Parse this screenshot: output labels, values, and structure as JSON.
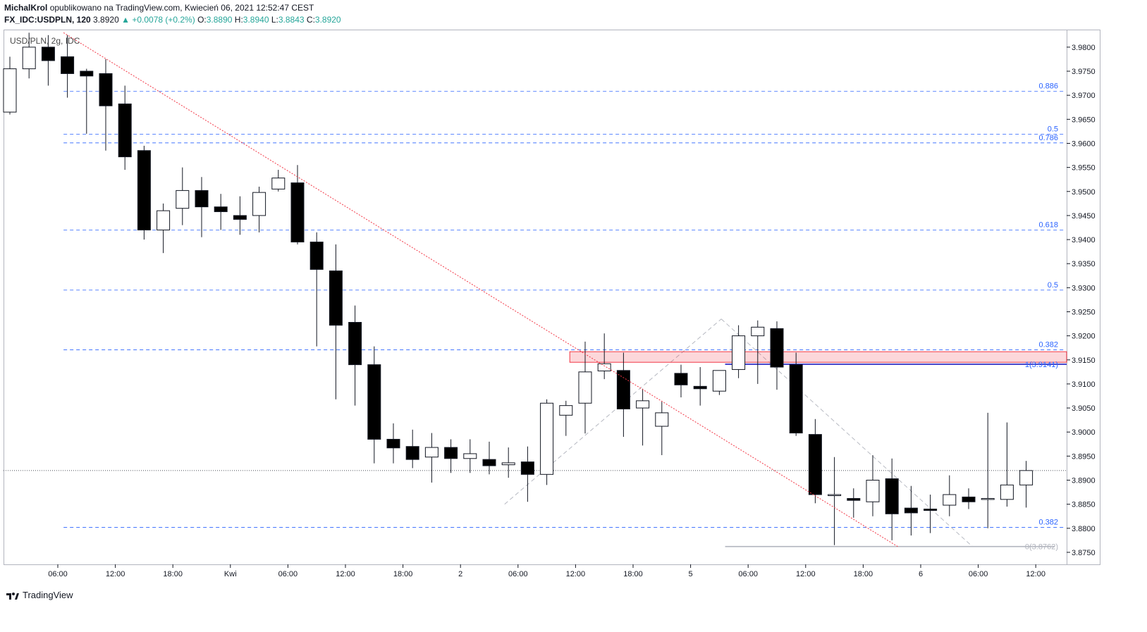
{
  "header": {
    "author": "MichalKrol",
    "published_text": "opublikowano na TradingView.com, Kwiecień 06, 2021 12:52:47 CEST",
    "symbol": "FX_IDC:USDPLN, 120",
    "last": "3.8920",
    "change_arrow": "▲",
    "change": "+0.0078 (+0.2%)",
    "o_label": "O:",
    "o_value": "3.8890",
    "h_label": "H:",
    "h_value": "3.8940",
    "l_label": "L:",
    "l_value": "3.8843",
    "c_label": "C:",
    "c_value": "3.8920"
  },
  "footer": {
    "brand": "TradingView",
    "logo_icon": "tradingview-logo-icon"
  },
  "chart_data": {
    "type": "candlestick",
    "title": "USD/PLN, 2g, IDC",
    "ylim": [
      3.8725,
      3.9835
    ],
    "y_ticks": [
      "3.9800",
      "3.9750",
      "3.9700",
      "3.9650",
      "3.9600",
      "3.9550",
      "3.9500",
      "3.9450",
      "3.9400",
      "3.9350",
      "3.9300",
      "3.9250",
      "3.9200",
      "3.9150",
      "3.9100",
      "3.9050",
      "3.9000",
      "3.8950",
      "3.8900",
      "3.8850",
      "3.8800",
      "3.8750"
    ],
    "x_ticks": [
      {
        "i": 2.5,
        "label": "06:00"
      },
      {
        "i": 5.5,
        "label": "12:00"
      },
      {
        "i": 8.5,
        "label": "18:00"
      },
      {
        "i": 11.5,
        "label": "Kwi"
      },
      {
        "i": 14.5,
        "label": "06:00"
      },
      {
        "i": 17.5,
        "label": "12:00"
      },
      {
        "i": 20.5,
        "label": "18:00"
      },
      {
        "i": 23.5,
        "label": "2"
      },
      {
        "i": 26.5,
        "label": "06:00"
      },
      {
        "i": 29.5,
        "label": "12:00"
      },
      {
        "i": 32.5,
        "label": "18:00"
      },
      {
        "i": 35.5,
        "label": "5"
      },
      {
        "i": 38.5,
        "label": "06:00"
      },
      {
        "i": 41.5,
        "label": "12:00"
      },
      {
        "i": 44.5,
        "label": "18:00"
      },
      {
        "i": 47.5,
        "label": "6"
      },
      {
        "i": 50.5,
        "label": "06:00"
      },
      {
        "i": 53.5,
        "label": "12:00"
      }
    ],
    "candles": [
      {
        "o": 3.9665,
        "h": 3.978,
        "l": 3.966,
        "c": 3.9755
      },
      {
        "o": 3.9755,
        "h": 3.983,
        "l": 3.9735,
        "c": 3.98
      },
      {
        "o": 3.98,
        "h": 3.9825,
        "l": 3.972,
        "c": 3.9772
      },
      {
        "o": 3.978,
        "h": 3.9825,
        "l": 3.9695,
        "c": 3.9745
      },
      {
        "o": 3.975,
        "h": 3.9755,
        "l": 3.962,
        "c": 3.974
      },
      {
        "o": 3.9745,
        "h": 3.9775,
        "l": 3.9585,
        "c": 3.9678
      },
      {
        "o": 3.9682,
        "h": 3.972,
        "l": 3.9545,
        "c": 3.9572
      },
      {
        "o": 3.9585,
        "h": 3.9595,
        "l": 3.94,
        "c": 3.942
      },
      {
        "o": 3.942,
        "h": 3.9475,
        "l": 3.9372,
        "c": 3.946
      },
      {
        "o": 3.9465,
        "h": 3.955,
        "l": 3.943,
        "c": 3.9502
      },
      {
        "o": 3.9502,
        "h": 3.953,
        "l": 3.9405,
        "c": 3.9468
      },
      {
        "o": 3.9468,
        "h": 3.9495,
        "l": 3.942,
        "c": 3.9458
      },
      {
        "o": 3.945,
        "h": 3.949,
        "l": 3.941,
        "c": 3.9442
      },
      {
        "o": 3.945,
        "h": 3.951,
        "l": 3.9415,
        "c": 3.9498
      },
      {
        "o": 3.9505,
        "h": 3.9545,
        "l": 3.95,
        "c": 3.9528
      },
      {
        "o": 3.9518,
        "h": 3.9555,
        "l": 3.939,
        "c": 3.9395
      },
      {
        "o": 3.9395,
        "h": 3.9415,
        "l": 3.9178,
        "c": 3.9338
      },
      {
        "o": 3.9335,
        "h": 3.939,
        "l": 3.9068,
        "c": 3.9222
      },
      {
        "o": 3.9228,
        "h": 3.9263,
        "l": 3.9055,
        "c": 3.914
      },
      {
        "o": 3.914,
        "h": 3.9178,
        "l": 3.8935,
        "c": 3.8985
      },
      {
        "o": 3.8985,
        "h": 3.9018,
        "l": 3.8935,
        "c": 3.8967
      },
      {
        "o": 3.897,
        "h": 3.9005,
        "l": 3.8925,
        "c": 3.8943
      },
      {
        "o": 3.8948,
        "h": 3.8998,
        "l": 3.8895,
        "c": 3.8968
      },
      {
        "o": 3.8968,
        "h": 3.8985,
        "l": 3.8915,
        "c": 3.8945
      },
      {
        "o": 3.8945,
        "h": 3.8985,
        "l": 3.8915,
        "c": 3.8955
      },
      {
        "o": 3.8943,
        "h": 3.898,
        "l": 3.8912,
        "c": 3.893
      },
      {
        "o": 3.8932,
        "h": 3.8968,
        "l": 3.8905,
        "c": 3.8936
      },
      {
        "o": 3.8938,
        "h": 3.897,
        "l": 3.8855,
        "c": 3.8912
      },
      {
        "o": 3.8912,
        "h": 3.9068,
        "l": 3.889,
        "c": 3.906
      },
      {
        "o": 3.9035,
        "h": 3.9065,
        "l": 3.8992,
        "c": 3.9055
      },
      {
        "o": 3.906,
        "h": 3.9188,
        "l": 3.8997,
        "c": 3.9125
      },
      {
        "o": 3.9127,
        "h": 3.9205,
        "l": 3.911,
        "c": 3.9142
      },
      {
        "o": 3.9128,
        "h": 3.9165,
        "l": 3.899,
        "c": 3.9048
      },
      {
        "o": 3.905,
        "h": 3.909,
        "l": 3.8972,
        "c": 3.9065
      },
      {
        "o": 3.9012,
        "h": 3.9063,
        "l": 3.8952,
        "c": 3.904
      },
      {
        "o": 3.9122,
        "h": 3.914,
        "l": 3.9072,
        "c": 3.9098
      },
      {
        "o": 3.9095,
        "h": 3.9135,
        "l": 3.9055,
        "c": 3.909
      },
      {
        "o": 3.9085,
        "h": 3.9125,
        "l": 3.9077,
        "c": 3.9128
      },
      {
        "o": 3.913,
        "h": 3.9222,
        "l": 3.9112,
        "c": 3.92
      },
      {
        "o": 3.92,
        "h": 3.9232,
        "l": 3.91,
        "c": 3.9218
      },
      {
        "o": 3.9215,
        "h": 3.923,
        "l": 3.9088,
        "c": 3.9135
      },
      {
        "o": 3.914,
        "h": 3.9165,
        "l": 3.8992,
        "c": 3.8998
      },
      {
        "o": 3.8995,
        "h": 3.9027,
        "l": 3.8852,
        "c": 3.887
      },
      {
        "o": 3.887,
        "h": 3.8948,
        "l": 3.8765,
        "c": 3.887
      },
      {
        "o": 3.8862,
        "h": 3.8883,
        "l": 3.8822,
        "c": 3.8858
      },
      {
        "o": 3.8855,
        "h": 3.8952,
        "l": 3.8825,
        "c": 3.89
      },
      {
        "o": 3.8903,
        "h": 3.8945,
        "l": 3.8775,
        "c": 3.883
      },
      {
        "o": 3.8842,
        "h": 3.8888,
        "l": 3.8785,
        "c": 3.8832
      },
      {
        "o": 3.884,
        "h": 3.887,
        "l": 3.879,
        "c": 3.8837
      },
      {
        "o": 3.8848,
        "h": 3.891,
        "l": 3.8825,
        "c": 3.887
      },
      {
        "o": 3.8865,
        "h": 3.8883,
        "l": 3.884,
        "c": 3.8855
      },
      {
        "o": 3.886,
        "h": 3.904,
        "l": 3.88,
        "c": 3.8862
      },
      {
        "o": 3.886,
        "h": 3.902,
        "l": 3.8845,
        "c": 3.889
      },
      {
        "o": 3.889,
        "h": 3.894,
        "l": 3.8843,
        "c": 3.892
      }
    ],
    "fib_levels": [
      {
        "label": "0.886",
        "value": 3.9708
      },
      {
        "label": "0.5",
        "value": 3.9619
      },
      {
        "label": "0.786",
        "value": 3.9601
      },
      {
        "label": "0.618",
        "value": 3.942
      },
      {
        "label": "0.5",
        "value": 3.9295
      },
      {
        "label": "0.382",
        "value": 3.9171
      },
      {
        "label": "0.382",
        "value": 3.8802
      }
    ],
    "current_price": 3.892,
    "zone": {
      "from_i": 29.2,
      "low": 3.9145,
      "high": 3.9167
    },
    "level_line": {
      "from_i": 37.3,
      "value": 3.9141,
      "label": "1(3.9141)"
    },
    "low_line": {
      "from_i": 37.3,
      "to_i": 54.5,
      "value": 3.8762,
      "label": "0(3.8762)"
    },
    "trendline": {
      "i1": 2.8,
      "v1": 3.983,
      "i2": 46.3,
      "v2": 3.8762
    },
    "dashed_gray": [
      {
        "i1": 25.8,
        "v1": 3.885,
        "i2": 37.1,
        "v2": 3.9235
      },
      {
        "i1": 37.1,
        "v1": 3.9235,
        "i2": 50.2,
        "v2": 3.8762
      }
    ]
  }
}
